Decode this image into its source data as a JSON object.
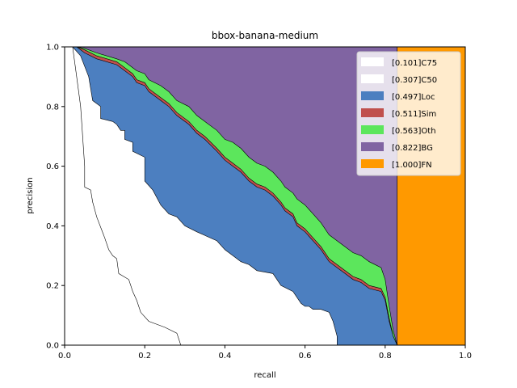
{
  "chart_data": {
    "type": "area",
    "title": "bbox-banana-medium",
    "xlabel": "recall",
    "ylabel": "precision",
    "xlim": [
      0,
      1
    ],
    "ylim": [
      0,
      1
    ],
    "xticks": [
      "0.0",
      "0.2",
      "0.4",
      "0.6",
      "0.8",
      "1.0"
    ],
    "yticks": [
      "0.0",
      "0.2",
      "0.4",
      "0.6",
      "0.8",
      "1.0"
    ],
    "legend_position": "top-right",
    "series": [
      {
        "name": "[0.101]C75",
        "color": "#ffffff",
        "points": [
          [
            0.02,
            1.0
          ],
          [
            0.03,
            0.9
          ],
          [
            0.04,
            0.8
          ],
          [
            0.045,
            0.7
          ],
          [
            0.05,
            0.6
          ],
          [
            0.05,
            0.53
          ],
          [
            0.065,
            0.52
          ],
          [
            0.07,
            0.48
          ],
          [
            0.08,
            0.43
          ],
          [
            0.1,
            0.36
          ],
          [
            0.11,
            0.32
          ],
          [
            0.12,
            0.3
          ],
          [
            0.13,
            0.29
          ],
          [
            0.135,
            0.24
          ],
          [
            0.16,
            0.22
          ],
          [
            0.17,
            0.18
          ],
          [
            0.18,
            0.15
          ],
          [
            0.19,
            0.11
          ],
          [
            0.21,
            0.08
          ],
          [
            0.25,
            0.06
          ],
          [
            0.28,
            0.04
          ],
          [
            0.285,
            0.02
          ],
          [
            0.29,
            0.0
          ]
        ]
      },
      {
        "name": "[0.307]C50",
        "color": "#ffffff",
        "points": [
          [
            0.02,
            1.0
          ],
          [
            0.04,
            0.97
          ],
          [
            0.06,
            0.9
          ],
          [
            0.07,
            0.82
          ],
          [
            0.09,
            0.8
          ],
          [
            0.09,
            0.76
          ],
          [
            0.12,
            0.75
          ],
          [
            0.13,
            0.74
          ],
          [
            0.14,
            0.72
          ],
          [
            0.15,
            0.72
          ],
          [
            0.15,
            0.69
          ],
          [
            0.17,
            0.68
          ],
          [
            0.17,
            0.65
          ],
          [
            0.2,
            0.63
          ],
          [
            0.2,
            0.55
          ],
          [
            0.22,
            0.52
          ],
          [
            0.24,
            0.47
          ],
          [
            0.26,
            0.44
          ],
          [
            0.28,
            0.43
          ],
          [
            0.3,
            0.4
          ],
          [
            0.33,
            0.38
          ],
          [
            0.38,
            0.35
          ],
          [
            0.4,
            0.32
          ],
          [
            0.42,
            0.3
          ],
          [
            0.44,
            0.28
          ],
          [
            0.46,
            0.27
          ],
          [
            0.48,
            0.25
          ],
          [
            0.52,
            0.24
          ],
          [
            0.54,
            0.2
          ],
          [
            0.57,
            0.18
          ],
          [
            0.59,
            0.14
          ],
          [
            0.6,
            0.13
          ],
          [
            0.61,
            0.13
          ],
          [
            0.62,
            0.12
          ],
          [
            0.64,
            0.12
          ],
          [
            0.66,
            0.11
          ],
          [
            0.67,
            0.08
          ],
          [
            0.68,
            0.03
          ],
          [
            0.68,
            0.0
          ]
        ]
      },
      {
        "name": "[0.497]Loc",
        "color": "#4c7fc0",
        "points": [
          [
            0.03,
            1.0
          ],
          [
            0.05,
            0.98
          ],
          [
            0.08,
            0.96
          ],
          [
            0.13,
            0.94
          ],
          [
            0.15,
            0.92
          ],
          [
            0.17,
            0.9
          ],
          [
            0.18,
            0.88
          ],
          [
            0.2,
            0.87
          ],
          [
            0.21,
            0.85
          ],
          [
            0.24,
            0.82
          ],
          [
            0.26,
            0.8
          ],
          [
            0.28,
            0.77
          ],
          [
            0.31,
            0.74
          ],
          [
            0.33,
            0.71
          ],
          [
            0.35,
            0.69
          ],
          [
            0.38,
            0.65
          ],
          [
            0.4,
            0.62
          ],
          [
            0.42,
            0.6
          ],
          [
            0.44,
            0.58
          ],
          [
            0.46,
            0.55
          ],
          [
            0.48,
            0.53
          ],
          [
            0.5,
            0.52
          ],
          [
            0.52,
            0.5
          ],
          [
            0.54,
            0.47
          ],
          [
            0.55,
            0.45
          ],
          [
            0.57,
            0.43
          ],
          [
            0.58,
            0.4
          ],
          [
            0.6,
            0.38
          ],
          [
            0.62,
            0.35
          ],
          [
            0.64,
            0.32
          ],
          [
            0.66,
            0.28
          ],
          [
            0.68,
            0.26
          ],
          [
            0.7,
            0.24
          ],
          [
            0.72,
            0.22
          ],
          [
            0.74,
            0.21
          ],
          [
            0.76,
            0.19
          ],
          [
            0.79,
            0.18
          ],
          [
            0.8,
            0.15
          ],
          [
            0.81,
            0.08
          ],
          [
            0.82,
            0.03
          ],
          [
            0.83,
            0.0
          ]
        ]
      },
      {
        "name": "[0.511]Sim",
        "color": "#c0504d",
        "points": [
          [
            0.03,
            1.0
          ],
          [
            0.05,
            0.99
          ],
          [
            0.08,
            0.97
          ],
          [
            0.13,
            0.95
          ],
          [
            0.15,
            0.93
          ],
          [
            0.17,
            0.91
          ],
          [
            0.18,
            0.89
          ],
          [
            0.2,
            0.88
          ],
          [
            0.21,
            0.86
          ],
          [
            0.24,
            0.83
          ],
          [
            0.26,
            0.81
          ],
          [
            0.28,
            0.78
          ],
          [
            0.31,
            0.75
          ],
          [
            0.33,
            0.72
          ],
          [
            0.35,
            0.7
          ],
          [
            0.38,
            0.66
          ],
          [
            0.4,
            0.63
          ],
          [
            0.42,
            0.61
          ],
          [
            0.44,
            0.59
          ],
          [
            0.46,
            0.56
          ],
          [
            0.48,
            0.54
          ],
          [
            0.5,
            0.53
          ],
          [
            0.52,
            0.51
          ],
          [
            0.54,
            0.48
          ],
          [
            0.55,
            0.46
          ],
          [
            0.57,
            0.44
          ],
          [
            0.58,
            0.41
          ],
          [
            0.6,
            0.39
          ],
          [
            0.62,
            0.36
          ],
          [
            0.64,
            0.33
          ],
          [
            0.66,
            0.29
          ],
          [
            0.68,
            0.27
          ],
          [
            0.7,
            0.25
          ],
          [
            0.72,
            0.23
          ],
          [
            0.74,
            0.22
          ],
          [
            0.76,
            0.2
          ],
          [
            0.79,
            0.19
          ],
          [
            0.8,
            0.16
          ],
          [
            0.81,
            0.09
          ],
          [
            0.82,
            0.03
          ],
          [
            0.83,
            0.0
          ]
        ]
      },
      {
        "name": "[0.563]Oth",
        "color": "#5ce65c",
        "points": [
          [
            0.03,
            1.0
          ],
          [
            0.05,
            0.995
          ],
          [
            0.08,
            0.98
          ],
          [
            0.13,
            0.96
          ],
          [
            0.15,
            0.95
          ],
          [
            0.17,
            0.93
          ],
          [
            0.18,
            0.92
          ],
          [
            0.2,
            0.91
          ],
          [
            0.21,
            0.89
          ],
          [
            0.24,
            0.87
          ],
          [
            0.26,
            0.85
          ],
          [
            0.28,
            0.82
          ],
          [
            0.31,
            0.8
          ],
          [
            0.33,
            0.77
          ],
          [
            0.35,
            0.75
          ],
          [
            0.38,
            0.72
          ],
          [
            0.4,
            0.69
          ],
          [
            0.42,
            0.68
          ],
          [
            0.44,
            0.66
          ],
          [
            0.46,
            0.63
          ],
          [
            0.48,
            0.61
          ],
          [
            0.5,
            0.6
          ],
          [
            0.52,
            0.58
          ],
          [
            0.54,
            0.55
          ],
          [
            0.55,
            0.53
          ],
          [
            0.57,
            0.51
          ],
          [
            0.58,
            0.49
          ],
          [
            0.6,
            0.47
          ],
          [
            0.62,
            0.44
          ],
          [
            0.64,
            0.41
          ],
          [
            0.66,
            0.37
          ],
          [
            0.68,
            0.35
          ],
          [
            0.7,
            0.33
          ],
          [
            0.72,
            0.31
          ],
          [
            0.74,
            0.3
          ],
          [
            0.76,
            0.28
          ],
          [
            0.79,
            0.26
          ],
          [
            0.8,
            0.22
          ],
          [
            0.81,
            0.13
          ],
          [
            0.82,
            0.05
          ],
          [
            0.83,
            0.0
          ]
        ]
      },
      {
        "name": "[0.822]BG",
        "color": "#8064a2",
        "points": [
          [
            0.03,
            1.0
          ],
          [
            0.83,
            1.0
          ],
          [
            0.83,
            0.0
          ]
        ]
      },
      {
        "name": "[1.000]FN",
        "color": "#ff9900",
        "points": [
          [
            0.82,
            1.0
          ],
          [
            1.0,
            1.0
          ],
          [
            1.0,
            0.0
          ],
          [
            0.83,
            0.0
          ]
        ]
      }
    ]
  }
}
